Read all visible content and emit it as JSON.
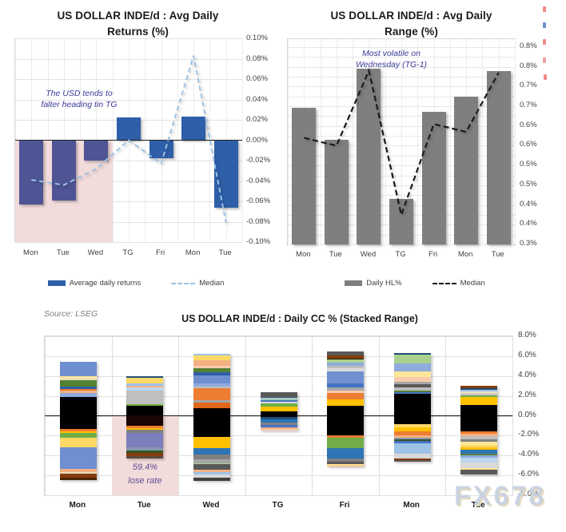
{
  "page": {
    "watermark": "FX678"
  },
  "chart_data": [
    {
      "type": "bar",
      "title_line1": "US DOLLAR INDE/d : Avg Daily",
      "title_line2": "Returns (%)",
      "annotation_line1": "The USD tends to",
      "annotation_line2": "falter heading tin TG",
      "categories": [
        "Mon",
        "Tue",
        "Wed",
        "TG",
        "Fri",
        "Mon",
        "Tue"
      ],
      "series": [
        {
          "name": "Average daily returns",
          "values": [
            -0.063,
            -0.059,
            -0.02,
            0.022,
            -0.018,
            0.023,
            -0.066
          ]
        },
        {
          "name": "Median",
          "values": [
            -0.039,
            -0.044,
            -0.028,
            0.0,
            -0.023,
            0.083,
            -0.081
          ]
        }
      ],
      "ylim": [
        -0.1,
        0.1
      ],
      "y_tick_labels": [
        "0.10%",
        "0.08%",
        "0.06%",
        "0.04%",
        "0.02%",
        "0.00%",
        "-0.02%",
        "-0.04%",
        "-0.06%",
        "-0.08%",
        "-0.10%"
      ],
      "bar_color": "#2E5FA8",
      "bar_color_highlighted": "#4E5494",
      "highlight_first_n": 3,
      "highlight_color": "#F2DCDB",
      "median_color": "#9DC3E6",
      "legend": [
        {
          "label": "Average daily returns",
          "type": "bar",
          "color": "#2E5FA8"
        },
        {
          "label": "Median",
          "type": "dash",
          "color": "#9DC3E6"
        }
      ]
    },
    {
      "type": "bar",
      "title_line1": "US DOLLAR INDE/d : Avg Daily",
      "title_line2": "Range (%)",
      "annotation_line1": "Most volatile on",
      "annotation_line2": "Wednesday (TG-1)",
      "categories": [
        "Mon",
        "Tue",
        "Wed",
        "TG",
        "Fri",
        "Mon",
        "Tue"
      ],
      "series": [
        {
          "name": "Daily HL%",
          "values": [
            0.645,
            0.565,
            0.745,
            0.415,
            0.635,
            0.675,
            0.74
          ]
        },
        {
          "name": "Median",
          "values": [
            0.57,
            0.55,
            0.74,
            0.375,
            0.605,
            0.585,
            0.735
          ]
        }
      ],
      "ylim": [
        0.3,
        0.82
      ],
      "y_tick_values": [
        0.8,
        0.75,
        0.7,
        0.65,
        0.6,
        0.55,
        0.5,
        0.45,
        0.4,
        0.35,
        0.3
      ],
      "y_tick_labels": [
        "0.8%",
        "0.8%",
        "0.7%",
        "0.7%",
        "0.6%",
        "0.6%",
        "0.5%",
        "0.5%",
        "0.4%",
        "0.4%",
        "0.3%"
      ],
      "bar_color": "#7F7F7F",
      "median_color": "#1A1A1A",
      "legend": [
        {
          "label": "Daily HL%",
          "type": "bar",
          "color": "#7F7F7F"
        },
        {
          "label": "Median",
          "type": "dash",
          "color": "#1A1A1A"
        }
      ]
    },
    {
      "type": "bar",
      "subtype": "stacked",
      "title": "US DOLLAR INDE/d : Daily CC % (Stacked Range)",
      "source": "Source: LSEG",
      "annotation_line1": "59.4%",
      "annotation_line2": "lose rate",
      "highlight_category": "Tue",
      "highlight_color": "#F2DCDB",
      "categories": [
        "Mon",
        "Tue",
        "Wed",
        "TG",
        "Fri",
        "Mon",
        "Tue"
      ],
      "ylim": [
        -8.0,
        8.0
      ],
      "y_tick_labels": [
        "8.0%",
        "6.0%",
        "4.0%",
        "2.0%",
        "0.0%",
        "-2.0%",
        "-4.0%",
        "-6.0%",
        "-8.0%"
      ],
      "bars": [
        {
          "category": "Mon",
          "top": 5.45,
          "bottom": -6.45,
          "segments": [
            {
              "v": 1.5,
              "c": "#6F8FD0"
            },
            {
              "v": 0.2,
              "c": "#FFE699"
            },
            {
              "v": 0.2,
              "c": "#E8DCC0"
            },
            {
              "v": 0.6,
              "c": "#548235"
            },
            {
              "v": 0.25,
              "c": "#2E5FA8"
            },
            {
              "v": 0.2,
              "c": "#ED7D31"
            },
            {
              "v": 0.2,
              "c": "#F4B183"
            },
            {
              "v": 0.45,
              "c": "#8FAADC"
            },
            {
              "v": 3.2,
              "c": "#000000"
            },
            {
              "v": 0.2,
              "c": "#ED7D31"
            },
            {
              "v": 0.2,
              "c": "#FFC000"
            },
            {
              "v": 0.5,
              "c": "#70AD47"
            },
            {
              "v": 0.9,
              "c": "#FFD966"
            },
            {
              "v": 2.2,
              "c": "#6F8FD0"
            },
            {
              "v": 0.3,
              "c": "#F4B183"
            },
            {
              "v": 0.2,
              "c": "#E8DCC0"
            },
            {
              "v": 0.35,
              "c": "#843C0C"
            },
            {
              "v": 0.25,
              "c": "#4A2506"
            }
          ]
        },
        {
          "category": "Tue",
          "top": 4.0,
          "bottom": -4.3,
          "segments": [
            {
              "v": 0.15,
              "c": "#1F4E79"
            },
            {
              "v": 0.6,
              "c": "#FFD966"
            },
            {
              "v": 0.2,
              "c": "#9DC3E6"
            },
            {
              "v": 0.2,
              "c": "#F4B183"
            },
            {
              "v": 0.35,
              "c": "#BDD7EE"
            },
            {
              "v": 1.3,
              "c": "#BFBFBF"
            },
            {
              "v": 0.2,
              "c": "#70AD47"
            },
            {
              "v": 1.0,
              "c": "#000000"
            },
            {
              "v": 1.0,
              "c": "#1A0505"
            },
            {
              "v": 0.25,
              "c": "#ED7D31"
            },
            {
              "v": 0.2,
              "c": "#FFC000"
            },
            {
              "v": 0.25,
              "c": "#808080"
            },
            {
              "v": 1.5,
              "c": "#7B7FBC"
            },
            {
              "v": 0.3,
              "c": "#8496B0"
            },
            {
              "v": 0.25,
              "c": "#375623"
            },
            {
              "v": 0.3,
              "c": "#843C0C"
            },
            {
              "v": 0.25,
              "c": "#5B4A3A"
            }
          ]
        },
        {
          "category": "Wed",
          "top": 6.25,
          "bottom": -6.6,
          "segments": [
            {
              "v": 0.2,
              "c": "#9DC3E6"
            },
            {
              "v": 0.5,
              "c": "#FFD966"
            },
            {
              "v": 0.5,
              "c": "#F4B183"
            },
            {
              "v": 0.3,
              "c": "#F8CBAD"
            },
            {
              "v": 0.4,
              "c": "#548235"
            },
            {
              "v": 0.3,
              "c": "#2E5FA8"
            },
            {
              "v": 0.8,
              "c": "#6F8FD0"
            },
            {
              "v": 0.3,
              "c": "#8FAADC"
            },
            {
              "v": 0.2,
              "c": "#BFBFBF"
            },
            {
              "v": 1.2,
              "c": "#ED7D31"
            },
            {
              "v": 0.2,
              "c": "#A6A6A6"
            },
            {
              "v": 0.6,
              "c": "#E2661A"
            },
            {
              "v": 2.9,
              "c": "#000000"
            },
            {
              "v": 1.1,
              "c": "#FFC000"
            },
            {
              "v": 0.65,
              "c": "#2E75B6"
            },
            {
              "v": 0.5,
              "c": "#808080"
            },
            {
              "v": 0.4,
              "c": "#A6A6A6"
            },
            {
              "v": 0.1,
              "c": "#A9D18E"
            },
            {
              "v": 0.55,
              "c": "#595959"
            },
            {
              "v": 0.2,
              "c": "#F4B183"
            },
            {
              "v": 0.3,
              "c": "#9DC3E6"
            },
            {
              "v": 0.3,
              "c": "#D9D9D9"
            },
            {
              "v": 0.35,
              "c": "#404040"
            }
          ]
        },
        {
          "category": "TG",
          "top": 2.35,
          "bottom": -1.5,
          "segments": [
            {
              "v": 0.55,
              "c": "#595959"
            },
            {
              "v": 0.15,
              "c": "#9DC3E6"
            },
            {
              "v": 0.12,
              "c": "#A9D18E"
            },
            {
              "v": 0.15,
              "c": "#4472C4"
            },
            {
              "v": 0.13,
              "c": "#D9D9D9"
            },
            {
              "v": 0.3,
              "c": "#70AD47"
            },
            {
              "v": 0.55,
              "c": "#FFC000"
            },
            {
              "v": 0.55,
              "c": "#000000"
            },
            {
              "v": 0.25,
              "c": "#1F4E79"
            },
            {
              "v": 0.3,
              "c": "#2E75B6"
            },
            {
              "v": 0.2,
              "c": "#808080"
            },
            {
              "v": 0.25,
              "c": "#4472C4"
            },
            {
              "v": 0.15,
              "c": "#F4B183"
            },
            {
              "v": 0.2,
              "c": "#F8CBAD"
            }
          ]
        },
        {
          "category": "Fri",
          "top": 6.45,
          "bottom": -5.15,
          "segments": [
            {
              "v": 0.4,
              "c": "#595959"
            },
            {
              "v": 0.3,
              "c": "#843C0C"
            },
            {
              "v": 0.1,
              "c": "#1A1A1A"
            },
            {
              "v": 0.3,
              "c": "#A9D18E"
            },
            {
              "v": 0.3,
              "c": "#8FAADC"
            },
            {
              "v": 0.3,
              "c": "#BFBFBF"
            },
            {
              "v": 0.3,
              "c": "#D9D9D9"
            },
            {
              "v": 1.2,
              "c": "#6F8FD0"
            },
            {
              "v": 0.4,
              "c": "#4472C4"
            },
            {
              "v": 0.3,
              "c": "#A6A6A6"
            },
            {
              "v": 0.3,
              "c": "#F8CBAD"
            },
            {
              "v": 0.6,
              "c": "#ED7D31"
            },
            {
              "v": 0.65,
              "c": "#FFC000"
            },
            {
              "v": 2.95,
              "c": "#000000"
            },
            {
              "v": 0.25,
              "c": "#ED7D31"
            },
            {
              "v": 1.1,
              "c": "#70AD47"
            },
            {
              "v": 1.0,
              "c": "#2E75B6"
            },
            {
              "v": 0.35,
              "c": "#808080"
            },
            {
              "v": 0.25,
              "c": "#595959"
            },
            {
              "v": 0.1,
              "c": "#FFE699"
            },
            {
              "v": 0.15,
              "c": "#F4B183"
            }
          ]
        },
        {
          "category": "Mon",
          "top": 6.35,
          "bottom": -4.65,
          "segments": [
            {
              "v": 0.2,
              "c": "#1F4E79"
            },
            {
              "v": 0.9,
              "c": "#A9D18E"
            },
            {
              "v": 0.8,
              "c": "#8FAADC"
            },
            {
              "v": 0.55,
              "c": "#FFE699"
            },
            {
              "v": 0.5,
              "c": "#F8CBAD"
            },
            {
              "v": 0.2,
              "c": "#A6A6A6"
            },
            {
              "v": 0.35,
              "c": "#595959"
            },
            {
              "v": 0.35,
              "c": "#BFBFBF"
            },
            {
              "v": 0.15,
              "c": "#548235"
            },
            {
              "v": 0.15,
              "c": "#4472C4"
            },
            {
              "v": 3.05,
              "c": "#000000"
            },
            {
              "v": 0.35,
              "c": "#FFD966"
            },
            {
              "v": 0.35,
              "c": "#FFC000"
            },
            {
              "v": 0.4,
              "c": "#ED7D31"
            },
            {
              "v": 0.25,
              "c": "#F4B183"
            },
            {
              "v": 0.15,
              "c": "#8496B0"
            },
            {
              "v": 0.2,
              "c": "#375623"
            },
            {
              "v": 0.2,
              "c": "#4472C4"
            },
            {
              "v": 1.1,
              "c": "#9DC3E6"
            },
            {
              "v": 0.45,
              "c": "#D9D9D9"
            },
            {
              "v": 0.15,
              "c": "#843C0C"
            },
            {
              "v": 0.2,
              "c": "#595959"
            }
          ]
        },
        {
          "category": "Tue",
          "top": 3.05,
          "bottom": -5.95,
          "segments": [
            {
              "v": 0.25,
              "c": "#843C0C"
            },
            {
              "v": 0.15,
              "c": "#1F4E79"
            },
            {
              "v": 0.2,
              "c": "#9DC3E6"
            },
            {
              "v": 0.2,
              "c": "#E8DCC0"
            },
            {
              "v": 0.2,
              "c": "#BFBFBF"
            },
            {
              "v": 0.15,
              "c": "#70AD47"
            },
            {
              "v": 0.85,
              "c": "#FFC000"
            },
            {
              "v": 2.65,
              "c": "#000000"
            },
            {
              "v": 0.25,
              "c": "#ED7D31"
            },
            {
              "v": 0.2,
              "c": "#F4B183"
            },
            {
              "v": 0.3,
              "c": "#BFBFBF"
            },
            {
              "v": 0.3,
              "c": "#808080"
            },
            {
              "v": 0.25,
              "c": "#FFE699"
            },
            {
              "v": 0.3,
              "c": "#FFD966"
            },
            {
              "v": 0.2,
              "c": "#FFC000"
            },
            {
              "v": 0.45,
              "c": "#2E75B6"
            },
            {
              "v": 0.15,
              "c": "#548235"
            },
            {
              "v": 0.2,
              "c": "#8FAADC"
            },
            {
              "v": 0.55,
              "c": "#BDD7EE"
            },
            {
              "v": 0.55,
              "c": "#D9D9D9"
            },
            {
              "v": 0.15,
              "c": "#FFE699"
            },
            {
              "v": 0.5,
              "c": "#595959"
            }
          ]
        }
      ]
    }
  ]
}
